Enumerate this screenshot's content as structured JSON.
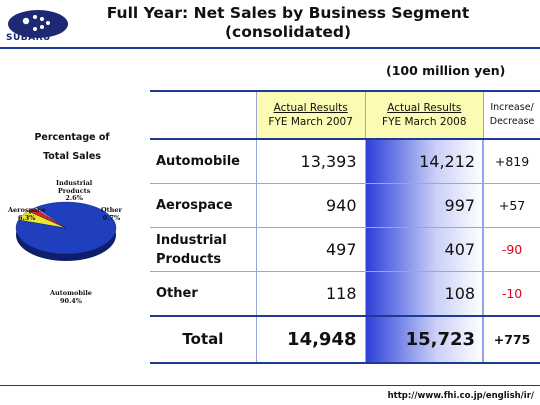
{
  "brand": {
    "logo_name": "SUBARU",
    "colors": {
      "primary": "#1f3a93",
      "header_fill": "#fbfbb4",
      "negative": "#e0001a"
    }
  },
  "title": {
    "line1": "Full Year: Net Sales by Business Segment",
    "line2": "(consolidated)"
  },
  "unit": "(100 million yen)",
  "pie": {
    "title_line1": "Percentage of",
    "title_line2": "Total Sales",
    "labels": {
      "industrial": {
        "line1": "Industrial",
        "line2": "Products",
        "pct": "2.6%"
      },
      "aerospace": {
        "line1": "Aerospace",
        "pct": "6.3%"
      },
      "other": {
        "line1": "Other",
        "pct": "0.7%"
      },
      "automobile": {
        "line1": "Automobile",
        "pct": "90.4%"
      }
    }
  },
  "chart_data": {
    "type": "pie",
    "categories": [
      "Automobile",
      "Aerospace",
      "Industrial Products",
      "Other"
    ],
    "values": [
      90.4,
      6.3,
      2.6,
      0.7
    ],
    "title": "Percentage of Total Sales",
    "colors": [
      "#1f3fbf",
      "#e8e830",
      "#e02020",
      "#d8d8d8"
    ]
  },
  "table": {
    "columns": {
      "fy2007": {
        "line1": "Actual Results",
        "line2": "FYE March 2007"
      },
      "fy2008": {
        "line1": "Actual Results",
        "line2": "FYE March 2008"
      },
      "change": {
        "line1": "Increase/",
        "line2": "Decrease"
      }
    },
    "rows": [
      {
        "label": "Automobile",
        "fy2007": "13,393",
        "fy2008": "14,212",
        "change": "+819"
      },
      {
        "label": "Aerospace",
        "fy2007": "940",
        "fy2008": "997",
        "change": "+57"
      },
      {
        "label_line1": "Industrial",
        "label_line2": "Products",
        "fy2007": "497",
        "fy2008": "407",
        "change": "-90"
      },
      {
        "label": "Other",
        "fy2007": "118",
        "fy2008": "108",
        "change": "-10"
      }
    ],
    "total": {
      "label": "Total",
      "fy2007": "14,948",
      "fy2008": "15,723",
      "change": "+775"
    }
  },
  "footer": {
    "url": "http://www.fhi.co.jp/english/ir/"
  }
}
